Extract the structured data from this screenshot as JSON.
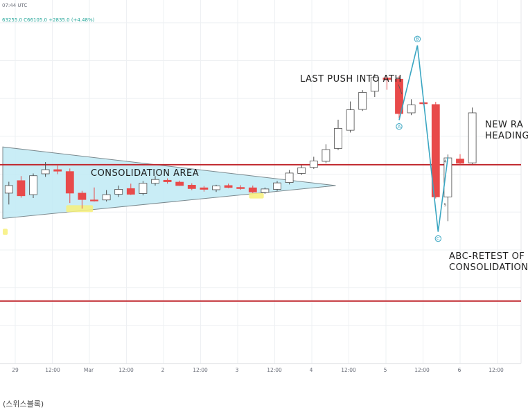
{
  "header": {
    "time": "07:44 UTC",
    "ohlc": "63255.0  C66105.0  +2835.0 (+4.48%)"
  },
  "caption": "(스위스블록)",
  "colors": {
    "bull": "#ffffff",
    "bull_edge": "#4d4d4d",
    "bear": "#e84a4a",
    "triangle_fill": "#bfeaf4",
    "triangle_edge": "#7c8a8f",
    "hline": "#c0272d",
    "wave": "#3aa6c2",
    "highlight": "#f7f07a",
    "grid": "#eef0f3"
  },
  "chart_data": {
    "type": "candlestick",
    "x_ticks": [
      "29",
      "12:00",
      "Mar",
      "12:00",
      "2",
      "12:00",
      "3",
      "12:00",
      "4",
      "12:00",
      "5",
      "12:00",
      "6",
      "12:00"
    ],
    "y_grid_levels": [
      10,
      20,
      30,
      40,
      50,
      60,
      70,
      80,
      90
    ],
    "y_range": [
      0,
      96
    ],
    "annotations": [
      {
        "id": "consolidation",
        "text": "CONSOLIDATION AREA"
      },
      {
        "id": "ath",
        "text": "LAST PUSH INTO ATH"
      },
      {
        "id": "new_range_1",
        "text": "NEW RA"
      },
      {
        "id": "new_range_2",
        "text": "HEADING"
      },
      {
        "id": "abc_1",
        "text": "ABC-RETEST OF"
      },
      {
        "id": "abc_2",
        "text": "CONSOLIDATION"
      }
    ],
    "horizontal_lines": [
      52.5,
      16.5
    ],
    "candles": [
      {
        "x": 0.5,
        "o": 45.0,
        "h": 48.0,
        "l": 42.0,
        "c": 47.0
      },
      {
        "x": 1.5,
        "o": 48.3,
        "h": 49.5,
        "l": 43.8,
        "c": 44.3
      },
      {
        "x": 2.5,
        "o": 44.6,
        "h": 50.2,
        "l": 43.7,
        "c": 49.6
      },
      {
        "x": 3.5,
        "o": 50.1,
        "h": 53.2,
        "l": 49.3,
        "c": 51.2
      },
      {
        "x": 4.5,
        "o": 51.2,
        "h": 52.5,
        "l": 50.0,
        "c": 50.8
      },
      {
        "x": 5.5,
        "o": 50.7,
        "h": 51.5,
        "l": 42.4,
        "c": 45.0
      },
      {
        "x": 6.5,
        "o": 45.0,
        "h": 45.6,
        "l": 40.9,
        "c": 43.3
      },
      {
        "x": 7.5,
        "o": 43.2,
        "h": 46.5,
        "l": 42.8,
        "c": 43.1
      },
      {
        "x": 8.5,
        "o": 43.2,
        "h": 45.8,
        "l": 42.8,
        "c": 44.6
      },
      {
        "x": 9.5,
        "o": 44.7,
        "h": 47.0,
        "l": 44.0,
        "c": 46.0
      },
      {
        "x": 10.5,
        "o": 46.2,
        "h": 47.5,
        "l": 44.5,
        "c": 44.7
      },
      {
        "x": 11.5,
        "o": 44.9,
        "h": 48.2,
        "l": 44.4,
        "c": 47.6
      },
      {
        "x": 12.5,
        "o": 47.6,
        "h": 49.5,
        "l": 47.0,
        "c": 48.6
      },
      {
        "x": 13.5,
        "o": 48.4,
        "h": 48.9,
        "l": 47.5,
        "c": 48.0
      },
      {
        "x": 14.5,
        "o": 47.9,
        "h": 48.3,
        "l": 46.9,
        "c": 47.0
      },
      {
        "x": 15.5,
        "o": 47.1,
        "h": 47.6,
        "l": 45.8,
        "c": 46.2
      },
      {
        "x": 16.5,
        "o": 46.4,
        "h": 46.9,
        "l": 45.4,
        "c": 46.0
      },
      {
        "x": 17.5,
        "o": 45.9,
        "h": 47.2,
        "l": 45.3,
        "c": 46.9
      },
      {
        "x": 18.5,
        "o": 47.0,
        "h": 47.5,
        "l": 46.3,
        "c": 46.5
      },
      {
        "x": 19.5,
        "o": 46.5,
        "h": 47.1,
        "l": 45.9,
        "c": 46.2
      },
      {
        "x": 20.5,
        "o": 46.4,
        "h": 47.0,
        "l": 45.0,
        "c": 45.3
      },
      {
        "x": 21.5,
        "o": 45.2,
        "h": 46.5,
        "l": 44.8,
        "c": 46.1
      },
      {
        "x": 22.5,
        "o": 46.0,
        "h": 48.2,
        "l": 45.6,
        "c": 47.7
      },
      {
        "x": 23.5,
        "o": 47.8,
        "h": 51.1,
        "l": 47.3,
        "c": 50.3
      },
      {
        "x": 24.5,
        "o": 50.2,
        "h": 52.4,
        "l": 49.8,
        "c": 51.7
      },
      {
        "x": 25.5,
        "o": 51.8,
        "h": 54.6,
        "l": 51.4,
        "c": 53.5
      },
      {
        "x": 26.5,
        "o": 53.4,
        "h": 57.9,
        "l": 52.9,
        "c": 56.5
      },
      {
        "x": 27.5,
        "o": 56.8,
        "h": 64.4,
        "l": 56.4,
        "c": 62.1
      },
      {
        "x": 28.5,
        "o": 61.6,
        "h": 69.2,
        "l": 61.0,
        "c": 67.0
      },
      {
        "x": 29.5,
        "o": 67.1,
        "h": 72.2,
        "l": 66.7,
        "c": 71.6
      },
      {
        "x": 30.5,
        "o": 71.9,
        "h": 76.4,
        "l": 70.4,
        "c": 75.5
      },
      {
        "x": 31.5,
        "o": 75.4,
        "h": 75.8,
        "l": 72.3,
        "c": 75.0
      },
      {
        "x": 32.5,
        "o": 75.1,
        "h": 75.9,
        "l": 64.8,
        "c": 66.0
      },
      {
        "x": 33.5,
        "o": 66.2,
        "h": 69.8,
        "l": 65.6,
        "c": 68.3
      },
      {
        "x": 34.5,
        "o": 68.9,
        "h": 69.3,
        "l": 68.2,
        "c": 68.6
      },
      {
        "x": 35.5,
        "o": 68.4,
        "h": 69.1,
        "l": 43.6,
        "c": 44.0
      },
      {
        "x": 36.5,
        "o": 44.0,
        "h": 55.2,
        "l": 37.6,
        "c": 54.3
      },
      {
        "x": 37.5,
        "o": 54.0,
        "h": 55.3,
        "l": 52.6,
        "c": 52.9
      },
      {
        "x": 38.5,
        "o": 53.0,
        "h": 67.6,
        "l": 52.7,
        "c": 66.2
      }
    ],
    "triangle": [
      [
        0,
        57.2
      ],
      [
        0,
        38.3
      ],
      [
        27.3,
        47.0
      ]
    ],
    "wave_path": [
      [
        32.5,
        64.3
      ],
      [
        34.0,
        84.0
      ],
      [
        35.7,
        34.8
      ],
      [
        36.5,
        54.5
      ]
    ],
    "wave_labels": [
      {
        "text": "A",
        "x": 32.5,
        "y": 62.6
      },
      {
        "text": "B",
        "x": 34.0,
        "y": 85.7
      },
      {
        "text": "C",
        "x": 35.7,
        "y": 33.0
      }
    ],
    "sub_labels": [
      {
        "text": "4",
        "x": 36.5,
        "y": 53.0
      },
      {
        "text": "5",
        "x": 36.5,
        "y": 41.5
      }
    ],
    "highlights": [
      {
        "x0": 5.2,
        "x1": 7.4,
        "y0": 40.0,
        "y1": 41.8
      },
      {
        "x0": 20.2,
        "x1": 21.4,
        "y0": 43.6,
        "y1": 45.0
      },
      {
        "x0": 0.0,
        "x1": 0.4,
        "y0": 34.0,
        "y1": 35.6
      }
    ]
  }
}
